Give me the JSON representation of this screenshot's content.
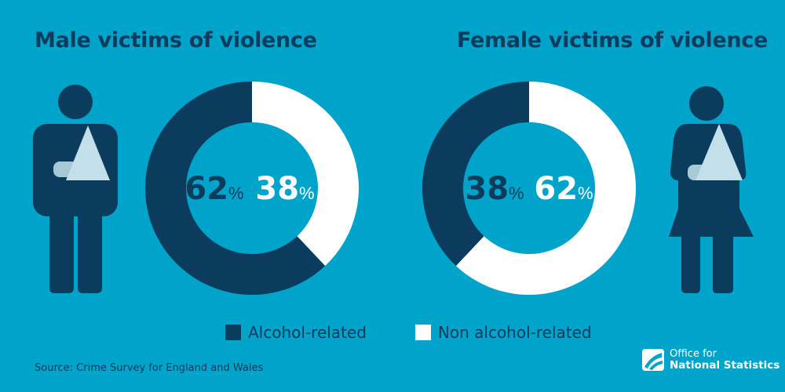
{
  "colors": {
    "background": "#00a3c9",
    "alcohol": "#0b3c5d",
    "non_alcohol": "#ffffff",
    "accent_light": "#c3e0ea"
  },
  "chart_data": [
    {
      "type": "pie",
      "title": "Male victims of violence",
      "categories": [
        "Alcohol-related",
        "Non alcohol-related"
      ],
      "values": [
        62,
        38
      ],
      "value_labels": [
        {
          "number": "62",
          "unit": "%"
        },
        {
          "number": "38",
          "unit": "%"
        }
      ],
      "donut": true,
      "legend": "bottom"
    },
    {
      "type": "pie",
      "title": "Female victims of violence",
      "categories": [
        "Alcohol-related",
        "Non alcohol-related"
      ],
      "values": [
        38,
        62
      ],
      "value_labels": [
        {
          "number": "38",
          "unit": "%"
        },
        {
          "number": "62",
          "unit": "%"
        }
      ],
      "donut": true,
      "legend": "bottom"
    }
  ],
  "legend": {
    "items": [
      {
        "label": "Alcohol-related",
        "color": "#0b3c5d"
      },
      {
        "label": "Non alcohol-related",
        "color": "#ffffff"
      }
    ]
  },
  "footer": {
    "source": "Source: Crime Survey for England and Wales",
    "logo_line1": "Office for",
    "logo_line2": "National Statistics"
  }
}
